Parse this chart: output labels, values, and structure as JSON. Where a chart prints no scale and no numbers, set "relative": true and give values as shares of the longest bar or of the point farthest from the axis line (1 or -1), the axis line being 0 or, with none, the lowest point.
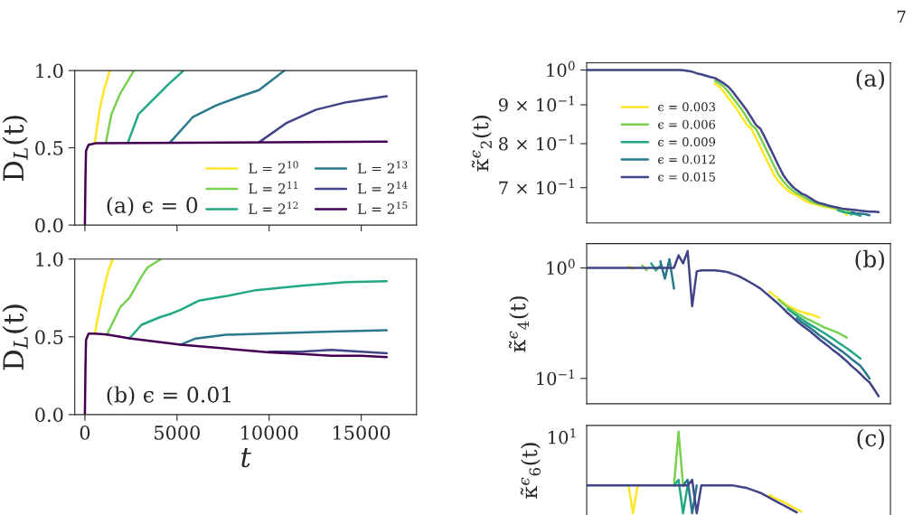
{
  "chart_data": [
    {
      "type": "line",
      "ylabel": "D$_{L}$(t)",
      "xlim": [
        -550,
        18000
      ],
      "ylim": [
        0,
        1
      ],
      "xticks": [
        0,
        5000,
        10000,
        15000
      ],
      "yticks": [
        {
          "value": 0,
          "label": "0.0"
        },
        {
          "value": 0.5,
          "label": "0.5"
        },
        {
          "value": 1,
          "label": "1.0"
        }
      ],
      "tick_labels": "y",
      "legend": "bottom right",
      "annotations": [
        "(a) ϵ = 0"
      ],
      "series": [
        {
          "name": "L = 2$^{10}$",
          "color": "#fde725",
          "x": [
            540,
            784,
            1030,
            1356
          ],
          "values": [
            0.535,
            0.737,
            0.873,
            1.0
          ]
        },
        {
          "name": "L = 2$^{11}$",
          "color": "#7ad151",
          "x": [
            1144,
            1438,
            1928,
            2663
          ],
          "values": [
            0.535,
            0.717,
            0.854,
            1.0
          ]
        },
        {
          "name": "L = 2$^{12}$",
          "color": "#22a884",
          "x": [
            2337,
            2908,
            4052,
            4542,
            5359
          ],
          "values": [
            0.535,
            0.717,
            0.854,
            0.912,
            1.0
          ]
        },
        {
          "name": "L = 2$^{13}$",
          "color": "#2a788e",
          "x": [
            4624,
            5850,
            7157,
            8464,
            9444,
            10833
          ],
          "values": [
            0.535,
            0.698,
            0.776,
            0.834,
            0.873,
            1.0
          ]
        },
        {
          "name": "L = 2$^{14}$",
          "color": "#414487",
          "x": [
            9444,
            10915,
            12549,
            14183,
            16384
          ],
          "values": [
            0.535,
            0.659,
            0.747,
            0.795,
            0.834
          ]
        },
        {
          "name": "L = 2$^{15}$",
          "color": "#440154",
          "x": [
            0,
            30,
            60,
            200,
            600,
            16384
          ],
          "values": [
            0,
            0.3,
            0.48,
            0.52,
            0.53,
            0.54
          ]
        }
      ]
    },
    {
      "type": "line",
      "xlabel": "t",
      "ylabel": "D$_{L}$(t)",
      "xlim": [
        -550,
        18000
      ],
      "ylim": [
        0,
        1
      ],
      "xticks": [
        0,
        5000,
        10000,
        15000
      ],
      "yticks": [
        {
          "value": 0,
          "label": "0.0"
        },
        {
          "value": 0.5,
          "label": "0.5"
        },
        {
          "value": 1,
          "label": "1.0"
        }
      ],
      "annotations": [
        "(b) ϵ = 0.01"
      ],
      "series": [
        {
          "color": "#fde725",
          "x": [
            540,
            786,
            1031,
            1276,
            1521
          ],
          "values": [
            0.52,
            0.674,
            0.81,
            0.926,
            1.0
          ]
        },
        {
          "color": "#7ad151",
          "x": [
            1194,
            1930,
            2420,
            3073,
            3400,
            4135
          ],
          "values": [
            0.515,
            0.693,
            0.751,
            0.887,
            0.946,
            1.0
          ]
        },
        {
          "color": "#22a884",
          "x": [
            2420,
            3073,
            4054,
            4707,
            5198,
            6178,
            7649,
            9283,
            11734,
            14185,
            16384
          ],
          "values": [
            0.49,
            0.577,
            0.625,
            0.65,
            0.674,
            0.732,
            0.761,
            0.8,
            0.829,
            0.852,
            0.858
          ]
        },
        {
          "color": "#2a788e",
          "x": [
            5198,
            6015,
            7649,
            10100,
            13367,
            16384
          ],
          "values": [
            0.45,
            0.489,
            0.513,
            0.522,
            0.534,
            0.542
          ]
        },
        {
          "color": "#414487",
          "x": [
            10000,
            11734,
            13367,
            15000,
            16384
          ],
          "values": [
            0.405,
            0.405,
            0.416,
            0.405,
            0.394
          ]
        },
        {
          "color": "#440154",
          "x": [
            0,
            30,
            60,
            200,
            540,
            1194,
            2420,
            5198,
            10000,
            11734,
            13367,
            15000,
            16384
          ],
          "values": [
            0,
            0.3,
            0.48,
            0.52,
            0.52,
            0.515,
            0.49,
            0.45,
            0.4,
            0.39,
            0.378,
            0.378,
            0.37
          ]
        }
      ]
    },
    {
      "type": "line",
      "ylabel": "κ̃$^{ϵ}$$_{2}$(t)",
      "log": true,
      "ylim": [
        0.629,
        1.022
      ],
      "yticks": [
        {
          "value": 0.7,
          "label": "7 × 10$^{−1}$"
        },
        {
          "value": 0.8,
          "label": "8 × 10$^{−1}$"
        },
        {
          "value": 0.9,
          "label": "9 × 10$^{−1}$"
        },
        {
          "value": 1,
          "label": "10$^{0}$"
        }
      ],
      "legend": "left",
      "annotations": [
        "(a)",
        "7"
      ],
      "categories": [
        null,
        null,
        null,
        null,
        null,
        null,
        null,
        null,
        null,
        null,
        null,
        null,
        null,
        null,
        null,
        null,
        null,
        null,
        null,
        null,
        null,
        null,
        null,
        null,
        null,
        null,
        null,
        null,
        null,
        null,
        null,
        null,
        null,
        null,
        null,
        null,
        null,
        null,
        null,
        null,
        null,
        null,
        null,
        null,
        null,
        null,
        null,
        null,
        null,
        null,
        null,
        null,
        null,
        null,
        null,
        null,
        null,
        null,
        null,
        null,
        null,
        null,
        null,
        null,
        null
      ],
      "series": [
        {
          "name": "ϵ = 0.003",
          "color": "#fde725",
          "values": [
            null,
            null,
            null,
            null,
            null,
            null,
            null,
            null,
            null,
            null,
            null,
            null,
            null,
            null,
            null,
            null,
            null,
            null,
            null,
            null,
            null,
            null,
            null,
            null,
            null,
            null,
            null,
            null,
            0.96,
            0.95,
            0.935,
            0.918,
            0.902,
            0.885,
            0.866,
            0.847,
            0.837,
            0.815,
            0.792,
            0.77,
            0.748,
            0.728,
            0.714,
            0.703,
            0.695,
            0.688,
            0.684,
            0.678,
            0.672,
            0.668,
            0.666,
            0.663,
            0.661,
            0.659,
            0.657,
            0.656,
            0.652,
            0.645,
            null,
            null,
            null,
            null,
            null,
            null,
            null
          ]
        },
        {
          "name": "ϵ = 0.006",
          "color": "#7ad151",
          "values": [
            null,
            null,
            null,
            null,
            null,
            null,
            null,
            null,
            null,
            null,
            null,
            null,
            null,
            null,
            null,
            null,
            null,
            null,
            null,
            null,
            null,
            null,
            null,
            null,
            null,
            null,
            null,
            null,
            0.968,
            0.96,
            0.95,
            0.935,
            0.918,
            0.902,
            0.885,
            0.866,
            0.847,
            0.837,
            0.815,
            0.792,
            0.77,
            0.748,
            0.728,
            0.714,
            0.703,
            0.695,
            0.688,
            0.684,
            0.678,
            0.672,
            0.668,
            0.666,
            0.663,
            0.661,
            0.659,
            0.657,
            0.656,
            0.655,
            0.645,
            null,
            null,
            null,
            null,
            null,
            null
          ]
        },
        {
          "name": "ϵ = 0.009",
          "color": "#22a884",
          "values": [
            null,
            null,
            null,
            null,
            null,
            null,
            null,
            null,
            null,
            null,
            null,
            null,
            null,
            null,
            null,
            null,
            null,
            null,
            null,
            null,
            null,
            null,
            null,
            null,
            null,
            null,
            null,
            null,
            null,
            null,
            null,
            null,
            null,
            null,
            null,
            null,
            null,
            null,
            null,
            null,
            null,
            null,
            null,
            null,
            null,
            null,
            null,
            null,
            null,
            null,
            null,
            null,
            null,
            null,
            null,
            0.654,
            0.651,
            0.649,
            0.647,
            0.646,
            0.643,
            null,
            null,
            null,
            null
          ]
        },
        {
          "name": "ϵ = 0.012",
          "color": "#2a788e",
          "values": [
            null,
            null,
            null,
            null,
            null,
            null,
            null,
            null,
            null,
            null,
            null,
            null,
            null,
            null,
            null,
            null,
            null,
            null,
            null,
            null,
            null,
            null,
            null,
            null,
            null,
            null,
            null,
            null,
            null,
            null,
            null,
            null,
            null,
            null,
            null,
            null,
            null,
            null,
            null,
            null,
            null,
            null,
            null,
            null,
            null,
            null,
            null,
            null,
            null,
            null,
            null,
            null,
            null,
            null,
            null,
            null,
            null,
            null,
            0.65,
            0.648,
            0.647,
            0.646,
            0.644,
            null,
            null
          ]
        },
        {
          "name": "ϵ = 0.015",
          "color": "#414487",
          "values": [
            1.0,
            1.0,
            1.0,
            1.0,
            1.0,
            1.0,
            1.0,
            1.0,
            1.0,
            1.0,
            1.0,
            1.0,
            1.0,
            1.0,
            1.0,
            1.0,
            1.0,
            1.0,
            1.0,
            1.0,
            1.0,
            0.999,
            0.997,
            0.995,
            0.99,
            0.987,
            0.983,
            0.979,
            0.976,
            0.968,
            0.96,
            0.95,
            0.935,
            0.918,
            0.902,
            0.885,
            0.866,
            0.847,
            0.837,
            0.815,
            0.792,
            0.77,
            0.748,
            0.728,
            0.714,
            0.703,
            0.695,
            0.688,
            0.684,
            0.678,
            0.672,
            0.668,
            0.666,
            0.663,
            0.661,
            0.659,
            0.657,
            0.656,
            0.655,
            0.654,
            0.653,
            0.652,
            0.651,
            0.651,
            0.65
          ]
        }
      ]
    },
    {
      "type": "line",
      "ylabel": "κ̃$^{ϵ}$$_{4}$(t)",
      "log": true,
      "ylim": [
        0.059,
        1.66
      ],
      "yticks": [
        {
          "value": 0.1,
          "label": "10$^{−1}$"
        },
        {
          "value": 1,
          "label": "10$^{0}$"
        }
      ],
      "annotations": [
        "(b)"
      ],
      "categories": [
        null,
        null,
        null,
        null,
        null,
        null,
        null,
        null,
        null,
        null,
        null,
        null,
        null,
        null,
        null,
        null,
        null,
        null,
        null,
        null,
        null,
        null,
        null,
        null,
        null,
        null,
        null,
        null,
        null,
        null,
        null,
        null,
        null,
        null,
        null,
        null,
        null,
        null,
        null,
        null,
        null,
        null,
        null,
        null,
        null,
        null,
        null,
        null,
        null,
        null,
        null,
        null,
        null,
        null,
        null,
        null,
        null,
        null,
        null,
        null,
        null,
        null,
        null,
        null,
        null
      ],
      "series": [
        {
          "color": "#fde725",
          "values": [
            null,
            null,
            null,
            null,
            null,
            null,
            null,
            null,
            null,
            1.03,
            0.98,
            null,
            null,
            null,
            null,
            null,
            null,
            null,
            null,
            null,
            null,
            null,
            null,
            null,
            null,
            null,
            null,
            null,
            null,
            null,
            null,
            null,
            null,
            null,
            null,
            null,
            null,
            null,
            null,
            null,
            0.61,
            0.565,
            0.525,
            0.49,
            0.455,
            0.435,
            0.415,
            0.4,
            0.39,
            0.38,
            0.368,
            0.356,
            null,
            null,
            null,
            null,
            null,
            null,
            null,
            null,
            null,
            null,
            null,
            null,
            null
          ]
        },
        {
          "color": "#7ad151",
          "values": [
            null,
            null,
            null,
            null,
            null,
            null,
            null,
            null,
            null,
            null,
            null,
            null,
            1.05,
            0.95,
            null,
            null,
            null,
            null,
            null,
            null,
            null,
            null,
            null,
            null,
            null,
            null,
            null,
            null,
            null,
            null,
            null,
            null,
            null,
            null,
            null,
            null,
            null,
            null,
            null,
            null,
            null,
            null,
            0.515,
            0.475,
            0.44,
            0.415,
            0.39,
            0.37,
            0.35,
            0.335,
            0.32,
            0.305,
            0.29,
            0.28,
            0.27,
            0.26,
            0.247,
            0.234,
            null,
            null,
            null,
            null,
            null,
            null,
            null
          ]
        },
        {
          "color": "#22a884",
          "values": [
            null,
            null,
            null,
            null,
            null,
            null,
            null,
            null,
            null,
            null,
            null,
            null,
            null,
            null,
            1.1,
            0.95,
            1.05,
            null,
            null,
            null,
            null,
            null,
            null,
            null,
            null,
            null,
            null,
            null,
            null,
            null,
            null,
            null,
            null,
            null,
            null,
            null,
            null,
            null,
            null,
            null,
            null,
            null,
            null,
            null,
            0.425,
            0.395,
            0.37,
            0.345,
            0.325,
            0.305,
            0.29,
            0.273,
            0.258,
            0.243,
            0.228,
            0.213,
            0.2,
            0.187,
            0.175,
            0.163,
            0.151,
            null,
            null,
            null,
            null
          ]
        },
        {
          "color": "#2a788e",
          "values": [
            null,
            null,
            null,
            null,
            null,
            null,
            null,
            null,
            null,
            null,
            null,
            null,
            null,
            null,
            null,
            null,
            1.15,
            0.8,
            1.2,
            0.65,
            null,
            null,
            null,
            null,
            null,
            null,
            null,
            null,
            null,
            null,
            null,
            null,
            null,
            null,
            null,
            null,
            null,
            null,
            null,
            null,
            null,
            null,
            null,
            null,
            null,
            null,
            0.35,
            0.325,
            0.305,
            0.285,
            0.265,
            0.245,
            0.23,
            0.215,
            0.2,
            0.187,
            0.175,
            0.163,
            0.15,
            0.14,
            0.13,
            0.115,
            0.1,
            null,
            null
          ]
        },
        {
          "color": "#414487",
          "values": [
            1.0,
            1.0,
            1.0,
            1.0,
            1.0,
            1.0,
            1.0,
            1.0,
            1.0,
            1.0,
            1.0,
            1.0,
            1.0,
            1.0,
            1.0,
            1.0,
            1.0,
            1.0,
            1.0,
            1.0,
            1.3,
            1.1,
            1.42,
            0.45,
            0.93,
            0.95,
            0.95,
            0.95,
            0.95,
            0.94,
            0.93,
            0.91,
            0.88,
            0.85,
            0.81,
            0.77,
            0.73,
            0.69,
            0.65,
            0.6,
            0.555,
            0.51,
            0.47,
            0.43,
            0.39,
            0.36,
            0.33,
            0.305,
            0.285,
            0.265,
            0.245,
            0.225,
            0.21,
            0.195,
            0.18,
            0.168,
            0.155,
            0.143,
            0.13,
            0.12,
            0.11,
            0.1,
            0.092,
            0.08,
            0.069
          ]
        }
      ]
    },
    {
      "type": "line",
      "ylabel": "κ̃$^{ϵ}$$_{6}$(t)",
      "relative": true,
      "annotations": [
        "(c)",
        "10$^{1}$"
      ],
      "categories": [
        null,
        null,
        null,
        null,
        null,
        null,
        null,
        null,
        null,
        null,
        null,
        null,
        null,
        null,
        null,
        null,
        null,
        null,
        null,
        null,
        null,
        null,
        null,
        null,
        null,
        null,
        null,
        null,
        null,
        null,
        null,
        null,
        null,
        null,
        null,
        null,
        null,
        null,
        null,
        null,
        null,
        null,
        null,
        null,
        null,
        null,
        null,
        null,
        null,
        null,
        null,
        null,
        null,
        null,
        null,
        null,
        null,
        null,
        null,
        null,
        null,
        null,
        null,
        null,
        null
      ],
      "series": [
        {
          "color": "#fde725",
          "values": [
            null,
            null,
            null,
            null,
            null,
            null,
            null,
            null,
            null,
            0.34,
            0,
            0.34,
            null,
            null,
            null,
            null,
            null,
            null,
            null,
            null,
            null,
            null,
            null,
            null,
            null,
            null,
            null,
            null,
            null,
            null,
            null,
            null,
            null,
            null,
            null,
            null,
            null,
            null,
            null,
            null,
            0.22,
            0.19,
            0.165,
            0.14,
            0.11,
            0.08,
            0.05,
            0.02,
            null,
            null,
            null,
            null,
            null,
            null,
            null,
            null,
            null,
            null,
            null,
            null,
            null,
            null,
            null,
            null,
            null
          ]
        },
        {
          "color": "#7ad151",
          "values": [
            null,
            null,
            null,
            null,
            null,
            null,
            null,
            null,
            null,
            null,
            null,
            null,
            null,
            null,
            null,
            null,
            null,
            null,
            null,
            0.34,
            1.0,
            0.34,
            null,
            null,
            null,
            null,
            null,
            null,
            null,
            null,
            null,
            null,
            null,
            null,
            null,
            null,
            null,
            null,
            null,
            null,
            null,
            null,
            null,
            null,
            null,
            null,
            null,
            null,
            null,
            null,
            null,
            null,
            null,
            null,
            null,
            null,
            null,
            null,
            null,
            null,
            null,
            null,
            null,
            null,
            null
          ]
        },
        {
          "color": "#22a884",
          "values": [
            null,
            null,
            null,
            null,
            null,
            null,
            null,
            null,
            null,
            null,
            null,
            null,
            null,
            null,
            null,
            null,
            null,
            null,
            null,
            0.34,
            0.41,
            0,
            0.34,
            null,
            null,
            null,
            null,
            null,
            null,
            null,
            null,
            null,
            null,
            null,
            null,
            null,
            null,
            null,
            null,
            null,
            null,
            null,
            null,
            null,
            null,
            null,
            null,
            null,
            null,
            null,
            null,
            null,
            null,
            null,
            null,
            null,
            null,
            null,
            null,
            null,
            null,
            null,
            null,
            null,
            null
          ]
        },
        {
          "color": "#2a788e",
          "values": [
            null,
            null,
            null,
            null,
            null,
            null,
            null,
            null,
            null,
            null,
            null,
            null,
            null,
            null,
            null,
            null,
            null,
            null,
            null,
            null,
            null,
            0.34,
            0.41,
            0,
            0.34,
            null,
            null,
            null,
            null,
            null,
            null,
            null,
            null,
            null,
            null,
            null,
            null,
            null,
            null,
            null,
            null,
            null,
            null,
            null,
            null,
            null,
            null,
            null,
            null,
            null,
            null,
            null,
            null,
            null,
            null,
            null,
            null,
            null,
            null,
            null,
            null,
            null,
            null,
            null,
            null
          ]
        },
        {
          "color": "#414487",
          "values": [
            0.34,
            0.34,
            0.34,
            0.34,
            0.34,
            0.34,
            0.34,
            0.34,
            0.34,
            0.34,
            0.34,
            0.34,
            0.34,
            0.34,
            0.34,
            0.34,
            0.34,
            0.34,
            0.34,
            0.34,
            0.34,
            0.34,
            0.34,
            0.41,
            0,
            0.34,
            0.34,
            0.34,
            0.34,
            0.34,
            0.34,
            0.34,
            0.34,
            0.33,
            0.32,
            0.31,
            0.29,
            0.27,
            0.25,
            0.22,
            0.19,
            0.16,
            0.13,
            0.1,
            0.07,
            0.04,
            0.01,
            null,
            null,
            null,
            null,
            null,
            null,
            null,
            null,
            null,
            null,
            null,
            null,
            null,
            null,
            null,
            null,
            null,
            null
          ]
        }
      ]
    }
  ]
}
